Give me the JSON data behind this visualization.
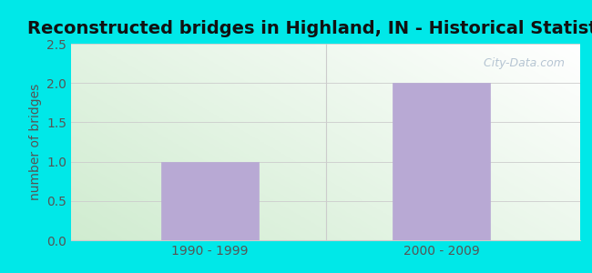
{
  "title": "Reconstructed bridges in Highland, IN - Historical Statistics",
  "categories": [
    "1990 - 1999",
    "2000 - 2009"
  ],
  "values": [
    1,
    2
  ],
  "bar_color": "#b8a9d4",
  "bar_edge_color": "#b8a9d4",
  "ylabel": "number of bridges",
  "ylim": [
    0,
    2.5
  ],
  "yticks": [
    0,
    0.5,
    1,
    1.5,
    2,
    2.5
  ],
  "outer_background": "#00e8e8",
  "grid_color": "#cccccc",
  "title_fontsize": 14,
  "ylabel_fontsize": 10,
  "tick_fontsize": 10,
  "tick_color": "#555555",
  "watermark_text": "  City-Data.com",
  "bg_gradient_left": "#d0ecd0",
  "bg_gradient_right": "#f0f8f0",
  "bg_top": "#f5f5f5"
}
